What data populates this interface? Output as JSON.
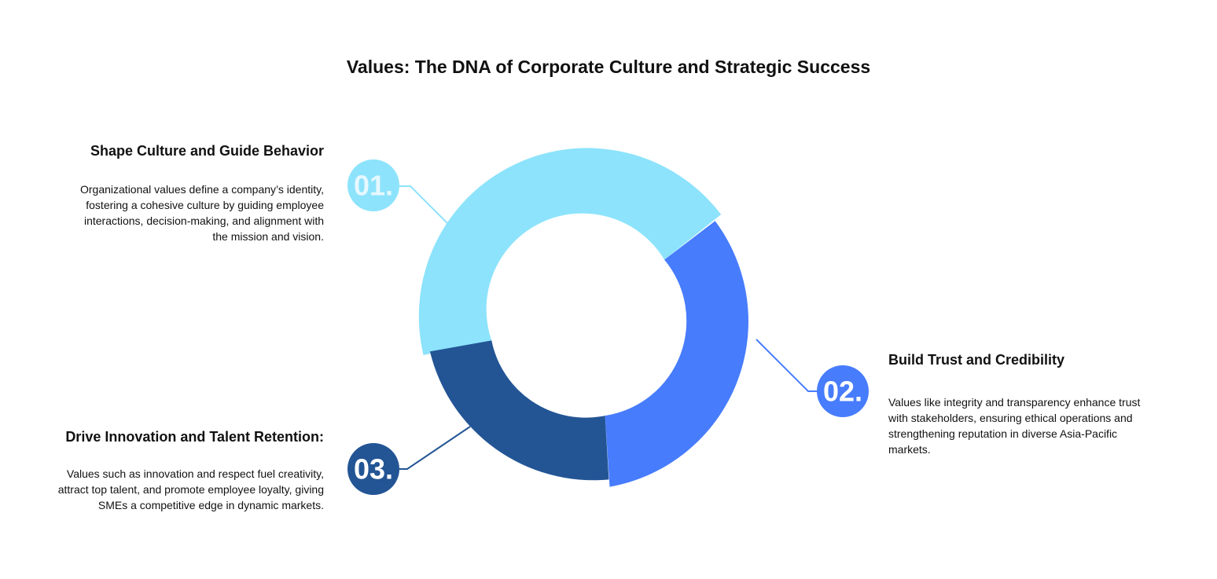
{
  "title": "Values: The DNA of Corporate Culture and Strategic Success",
  "colors": {
    "segment1": "#8de3fc",
    "segment2": "#477cfc",
    "segment3": "#235595",
    "number_text_light": "#e6f8ff",
    "number_text_white": "#ffffff"
  },
  "items": [
    {
      "number": "01.",
      "heading": "Shape Culture and Guide Behavior",
      "description": "Organizational values define a company’s identity, fostering a cohesive culture by guiding employee interactions, decision-making, and alignment with the mission and vision."
    },
    {
      "number": "02.",
      "heading": "Build Trust and Credibility",
      "description": "Values like integrity and transparency enhance trust with stakeholders, ensuring ethical operations and strengthening reputation in diverse Asia-Pacific markets."
    },
    {
      "number": "03.",
      "heading": "Drive Innovation and Talent Retention:",
      "description": "Values such as innovation and respect fuel creativity, attract top talent, and promote employee loyalty, giving SMEs a competitive edge in dynamic markets."
    }
  ]
}
